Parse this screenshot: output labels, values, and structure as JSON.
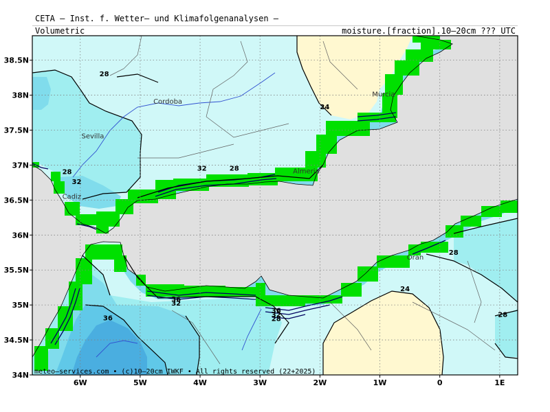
{
  "header": {
    "title": "CETA – Inst. f. Wetter– und Klimafolgenanalysen –",
    "variable_left": "Volumetric",
    "variable_right": "moisture.[fraction].10–20cm ??? UTC"
  },
  "map": {
    "lon_range": [
      -6.8,
      1.3
    ],
    "lat_range": [
      34.0,
      38.85
    ],
    "x_ticks": [
      {
        "lon": -6,
        "label": "6W"
      },
      {
        "lon": -5,
        "label": "5W"
      },
      {
        "lon": -4,
        "label": "4W"
      },
      {
        "lon": -3,
        "label": "3W"
      },
      {
        "lon": -2,
        "label": "2W"
      },
      {
        "lon": -1,
        "label": "1W"
      },
      {
        "lon": 0,
        "label": "0"
      },
      {
        "lon": 1,
        "label": "1E"
      }
    ],
    "y_ticks": [
      {
        "lat": 38.5,
        "label": "38.5N"
      },
      {
        "lat": 38.0,
        "label": "38N"
      },
      {
        "lat": 37.5,
        "label": "37.5N"
      },
      {
        "lat": 37.0,
        "label": "37N"
      },
      {
        "lat": 36.5,
        "label": "36.5N"
      },
      {
        "lat": 36.0,
        "label": "36N"
      },
      {
        "lat": 35.5,
        "label": "35.5N"
      },
      {
        "lat": 35.0,
        "label": "35N"
      },
      {
        "lat": 34.5,
        "label": "34.5N"
      },
      {
        "lat": 34.0,
        "label": "34N"
      }
    ],
    "places": [
      {
        "name": "Cordoba",
        "lon": -4.78,
        "lat": 37.88
      },
      {
        "name": "Sevilla",
        "lon": -5.98,
        "lat": 37.38
      },
      {
        "name": "Murcia",
        "lon": -1.13,
        "lat": 37.98
      },
      {
        "name": "Almeria",
        "lon": -2.45,
        "lat": 36.88
      },
      {
        "name": "Cadiz",
        "lon": -6.3,
        "lat": 36.52
      },
      {
        "name": "Oran",
        "lon": -0.55,
        "lat": 35.65
      }
    ],
    "contour_labels": [
      {
        "text": "28",
        "lon": -5.6,
        "lat": 38.27
      },
      {
        "text": "24",
        "lon": -1.92,
        "lat": 37.8
      },
      {
        "text": "28",
        "lon": -6.22,
        "lat": 36.87
      },
      {
        "text": "32",
        "lon": -6.06,
        "lat": 36.73
      },
      {
        "text": "32",
        "lon": -3.97,
        "lat": 36.92
      },
      {
        "text": "28",
        "lon": -3.43,
        "lat": 36.92
      },
      {
        "text": "28",
        "lon": 0.23,
        "lat": 35.72
      },
      {
        "text": "24",
        "lon": -0.58,
        "lat": 35.2
      },
      {
        "text": "36",
        "lon": -4.4,
        "lat": 35.05
      },
      {
        "text": "32",
        "lon": -4.4,
        "lat": 34.99
      },
      {
        "text": "36",
        "lon": -5.54,
        "lat": 34.78
      },
      {
        "text": "36",
        "lon": -2.73,
        "lat": 34.89
      },
      {
        "text": "32",
        "lon": -2.73,
        "lat": 34.83
      },
      {
        "text": "28",
        "lon": -2.73,
        "lat": 34.77
      },
      {
        "text": "28",
        "lon": 1.05,
        "lat": 34.83
      }
    ],
    "colors": {
      "sea": "#e0e0e0",
      "dry": "#fff8d0",
      "level_24_28": "#d0f8f8",
      "level_28_32": "#a0eef0",
      "level_32_36": "#80dcec",
      "level_36_40": "#60c8e8",
      "level_40": "#4aaee0",
      "wet_coast": "#00e000",
      "river": "#3050d0"
    }
  },
  "credit": "meteo–services.com • (c)10–20cm IWKF • All rights reserved (22+2025)"
}
